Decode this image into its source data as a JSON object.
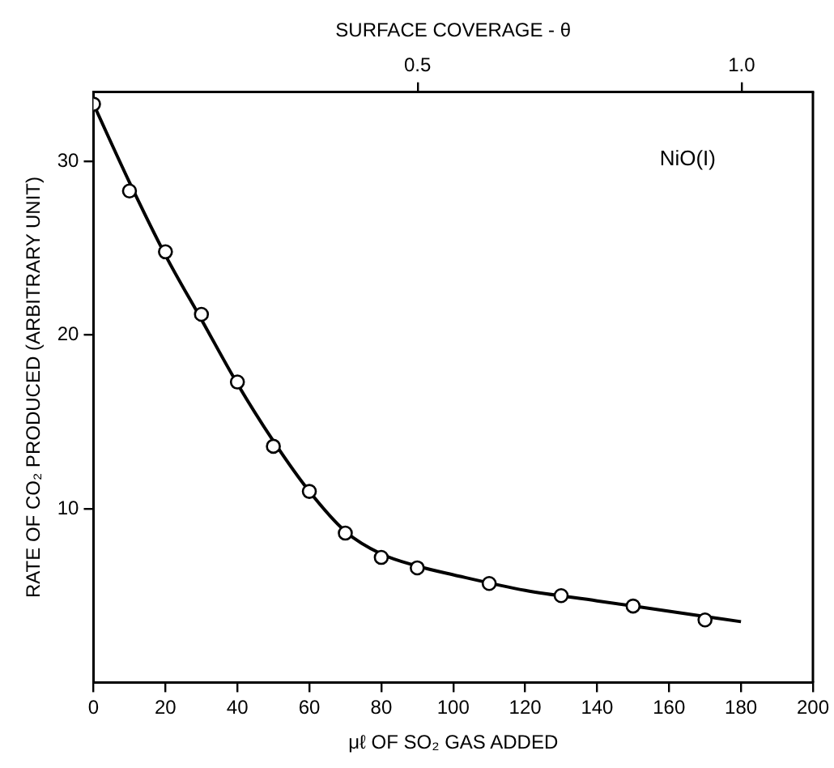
{
  "chart_data": {
    "type": "scatter",
    "xlabel": "μℓ OF SO₂ GAS ADDED",
    "ylabel": "RATE OF CO₂ PRODUCED (ARBITRARY UNIT)",
    "x2label": "SURFACE COVERAGE - θ",
    "annotations": [
      "NiO(I)"
    ],
    "xlim": [
      0,
      200
    ],
    "xticks": [
      0,
      20,
      40,
      60,
      80,
      100,
      120,
      140,
      160,
      180,
      200
    ],
    "x2lim": [
      0,
      1.11
    ],
    "x2ticks": [
      {
        "value": 0.5,
        "label": "0.5"
      },
      {
        "value": 1,
        "label": "1.0"
      }
    ],
    "ylim": [
      0,
      34
    ],
    "yticks": [
      10,
      20,
      30
    ],
    "legend": false,
    "series": [
      {
        "type": "scatter",
        "marker": "circle",
        "color": "#000000",
        "x": [
          0,
          10,
          20,
          30,
          40,
          50,
          60,
          70,
          80,
          90,
          110,
          130,
          150,
          170
        ],
        "values": [
          33.3,
          28.3,
          24.8,
          21.2,
          17.3,
          13.6,
          11.0,
          8.6,
          7.2,
          6.6,
          5.7,
          5.0,
          4.4,
          3.6
        ]
      },
      {
        "type": "line",
        "marker": "none",
        "line_style": "solid",
        "color": "#000000",
        "x": [
          0,
          10,
          20,
          30,
          40,
          50,
          60,
          70,
          80,
          90,
          100,
          120,
          140,
          160,
          180
        ],
        "values": [
          33.3,
          28.8,
          24.6,
          20.9,
          17.2,
          13.9,
          11.0,
          8.7,
          7.4,
          6.7,
          6.2,
          5.3,
          4.7,
          4.1,
          3.5
        ]
      }
    ]
  }
}
